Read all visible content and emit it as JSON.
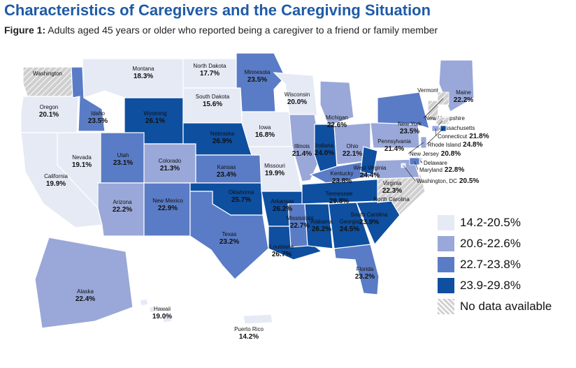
{
  "title": "Characteristics of Caregivers and the Caregiving Situation",
  "subtitle_prefix": "Figure 1:",
  "subtitle_text": " Adults aged 45 years or older who reported being a caregiver to a friend or family member",
  "colors": {
    "c1": "#e6eaf5",
    "c2": "#99a8d8",
    "c3": "#5a7cc6",
    "c4": "#0e4fa0",
    "nodata": "#cfcfcf"
  },
  "legend": [
    {
      "label": "14.2-20.5%",
      "color": "c1"
    },
    {
      "label": "20.6-22.6%",
      "color": "c2"
    },
    {
      "label": "22.7-23.8%",
      "color": "c3"
    },
    {
      "label": "23.9-29.8%",
      "color": "c4"
    },
    {
      "label": "No data available",
      "color": "nodata"
    }
  ],
  "states": [
    {
      "name": "Washington",
      "value": ""
    },
    {
      "name": "Oregon",
      "value": "20.1%"
    },
    {
      "name": "California",
      "value": "19.9%"
    },
    {
      "name": "Nevada",
      "value": "19.1%"
    },
    {
      "name": "Idaho",
      "value": "23.5%"
    },
    {
      "name": "Montana",
      "value": "18.3%"
    },
    {
      "name": "Wyoming",
      "value": "26.1%"
    },
    {
      "name": "Utah",
      "value": "23.1%"
    },
    {
      "name": "Arizona",
      "value": "22.2%"
    },
    {
      "name": "Colorado",
      "value": "21.3%"
    },
    {
      "name": "New Mexico",
      "value": "22.9%"
    },
    {
      "name": "North Dakota",
      "value": "17.7%"
    },
    {
      "name": "South Dakota",
      "value": "15.6%"
    },
    {
      "name": "Nebraska",
      "value": "26.9%"
    },
    {
      "name": "Kansas",
      "value": "23.4%"
    },
    {
      "name": "Oklahoma",
      "value": "25.7%"
    },
    {
      "name": "Texas",
      "value": "23.2%"
    },
    {
      "name": "Minnesota",
      "value": "23.5%"
    },
    {
      "name": "Iowa",
      "value": "16.8%"
    },
    {
      "name": "Missouri",
      "value": "19.9%"
    },
    {
      "name": "Arkansas",
      "value": "26.2%"
    },
    {
      "name": "Louisiana",
      "value": "26.7%"
    },
    {
      "name": "Wisconsin",
      "value": "20.0%"
    },
    {
      "name": "Illinois",
      "value": "21.4%"
    },
    {
      "name": "Michigan",
      "value": "22.6%"
    },
    {
      "name": "Indiana",
      "value": "24.0%"
    },
    {
      "name": "Ohio",
      "value": "22.1%"
    },
    {
      "name": "Kentucky",
      "value": "23.8%"
    },
    {
      "name": "Tennessee",
      "value": "29.8%"
    },
    {
      "name": "Mississippi",
      "value": "22.7%"
    },
    {
      "name": "Alabama",
      "value": "26.2%"
    },
    {
      "name": "Georgia",
      "value": "24.5%"
    },
    {
      "name": "Florida",
      "value": "23.2%"
    },
    {
      "name": "South Carolina",
      "value": "23.9%"
    },
    {
      "name": "North Carolina",
      "value": ""
    },
    {
      "name": "Virginia",
      "value": "22.3%"
    },
    {
      "name": "West Virginia",
      "value": "24.4%"
    },
    {
      "name": "Pennsylvania",
      "value": "21.4%"
    },
    {
      "name": "New York",
      "value": "23.5%"
    },
    {
      "name": "Vermont",
      "value": ""
    },
    {
      "name": "Maine",
      "value": "22.2%"
    },
    {
      "name": "Alaska",
      "value": "22.4%"
    },
    {
      "name": "Hawaii",
      "value": "19.0%"
    },
    {
      "name": "Puerto Rico",
      "value": "14.2%"
    }
  ],
  "callouts": [
    {
      "name": "New Hampshire",
      "value": ""
    },
    {
      "name": "Massachusetts",
      "value": ""
    },
    {
      "name": "Connecticut",
      "value": "21.8%"
    },
    {
      "name": "Rhode Island",
      "value": "24.8%"
    },
    {
      "name": "New Jersey",
      "value": "20.8%"
    },
    {
      "name": "Delaware",
      "value": ""
    },
    {
      "name": "Maryland",
      "value": "22.8%"
    },
    {
      "name": "Washington, DC",
      "value": "20.5%"
    }
  ]
}
